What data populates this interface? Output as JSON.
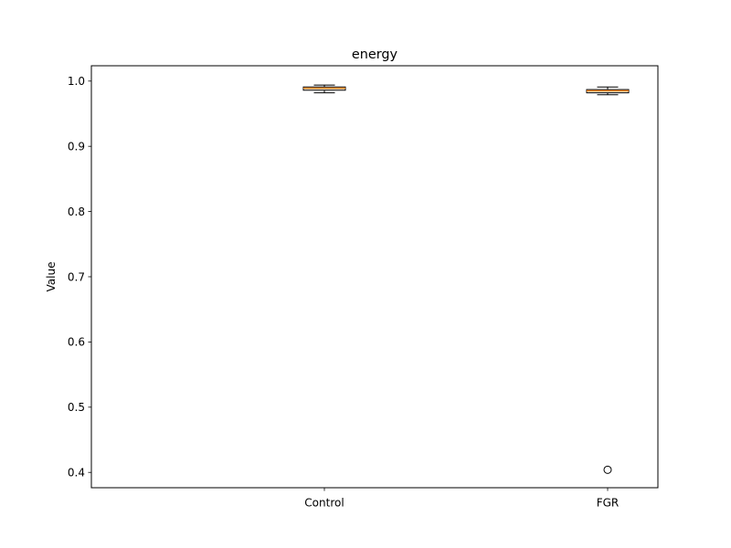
{
  "chart_data": {
    "type": "box",
    "title": "energy",
    "xlabel": "",
    "ylabel": "Value",
    "ylim": [
      0.3765,
      1.0235
    ],
    "yticks": [
      0.4,
      0.5,
      0.6,
      0.7,
      0.8,
      0.9,
      1.0
    ],
    "ytick_labels": [
      "0.4",
      "0.5",
      "0.6",
      "0.7",
      "0.8",
      "0.9",
      "1.0"
    ],
    "categories": [
      "Control",
      "FGR"
    ],
    "boxes": [
      {
        "category": "Control",
        "whisker_low": 0.982,
        "q1": 0.986,
        "median": 0.989,
        "q3": 0.991,
        "whisker_high": 0.994,
        "outliers": []
      },
      {
        "category": "FGR",
        "whisker_low": 0.979,
        "q1": 0.982,
        "median": 0.985,
        "q3": 0.987,
        "whisker_high": 0.991,
        "outliers": [
          0.404
        ]
      }
    ],
    "grid": false,
    "colors": {
      "box_face": "#ffffff",
      "box_edge": "#000000",
      "median": "#ff7f0e",
      "whisker": "#000000",
      "outlier": "#000000"
    }
  }
}
